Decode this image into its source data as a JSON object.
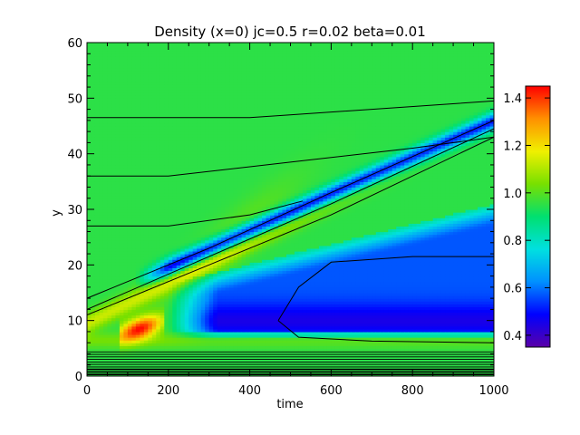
{
  "chart_data": {
    "type": "heatmap",
    "title": "Density (x=0) jc=0.5 r=0.02 beta=0.01",
    "xlabel": "time",
    "ylabel": "y",
    "xlim": [
      0,
      1000
    ],
    "ylim": [
      0,
      60
    ],
    "xticks": [
      0,
      200,
      400,
      600,
      800,
      1000
    ],
    "xtick_labels": [
      "0",
      "200",
      "400",
      "600",
      "800",
      "1000"
    ],
    "yticks": [
      0,
      10,
      20,
      30,
      40,
      50,
      60
    ],
    "ytick_labels": [
      "0",
      "10",
      "20",
      "30",
      "40",
      "50",
      "60"
    ],
    "colorbar": {
      "range": [
        0.35,
        1.45
      ],
      "ticks": [
        0.4,
        0.6,
        0.8,
        1.0,
        1.2,
        1.4
      ],
      "tick_labels": [
        "0.4",
        "0.6",
        "0.8",
        "1.0",
        "1.2",
        "1.4"
      ],
      "colormap": [
        "#5a00a8",
        "#0000ff",
        "#0090ff",
        "#00e0e0",
        "#00e070",
        "#78e000",
        "#f0f000",
        "#ff9000",
        "#ff0000"
      ]
    },
    "background_level": 0.95,
    "features": [
      {
        "name": "bright front",
        "value": 1.15,
        "from": [
          0,
          10
        ],
        "to": [
          1000,
          46
        ]
      },
      {
        "name": "depleted front",
        "value": 0.45,
        "from": [
          120,
          16
        ],
        "to": [
          1000,
          45
        ]
      },
      {
        "name": "hot spot",
        "value": 1.4,
        "x": [
          40,
          180
        ],
        "y": [
          5,
          10
        ]
      },
      {
        "name": "cavity",
        "value": 0.55,
        "x": [
          180,
          1000
        ],
        "y": [
          7,
          32
        ]
      }
    ],
    "contours": [
      {
        "points": [
          [
            0,
            46.5
          ],
          [
            400,
            46.5
          ],
          [
            1000,
            49.5
          ]
        ]
      },
      {
        "points": [
          [
            0,
            36
          ],
          [
            200,
            36
          ],
          [
            500,
            38.5
          ],
          [
            800,
            41
          ],
          [
            1000,
            43
          ]
        ]
      },
      {
        "points": [
          [
            0,
            27
          ],
          [
            200,
            27
          ],
          [
            400,
            29
          ],
          [
            530,
            31.5
          ]
        ]
      },
      {
        "points": [
          [
            0,
            14
          ],
          [
            300,
            23
          ],
          [
            600,
            33
          ],
          [
            1000,
            46
          ]
        ]
      },
      {
        "points": [
          [
            0,
            12
          ],
          [
            300,
            21.5
          ],
          [
            600,
            31
          ],
          [
            1000,
            44.5
          ]
        ]
      },
      {
        "points": [
          [
            0,
            11
          ],
          [
            300,
            20
          ],
          [
            600,
            29
          ],
          [
            1000,
            43
          ]
        ]
      },
      {
        "points": [
          [
            470,
            10
          ],
          [
            520,
            16
          ],
          [
            600,
            20.5
          ],
          [
            800,
            21.5
          ],
          [
            1000,
            21.5
          ]
        ]
      },
      {
        "points": [
          [
            470,
            10
          ],
          [
            520,
            7
          ],
          [
            700,
            6.3
          ],
          [
            1000,
            6
          ]
        ]
      }
    ]
  }
}
